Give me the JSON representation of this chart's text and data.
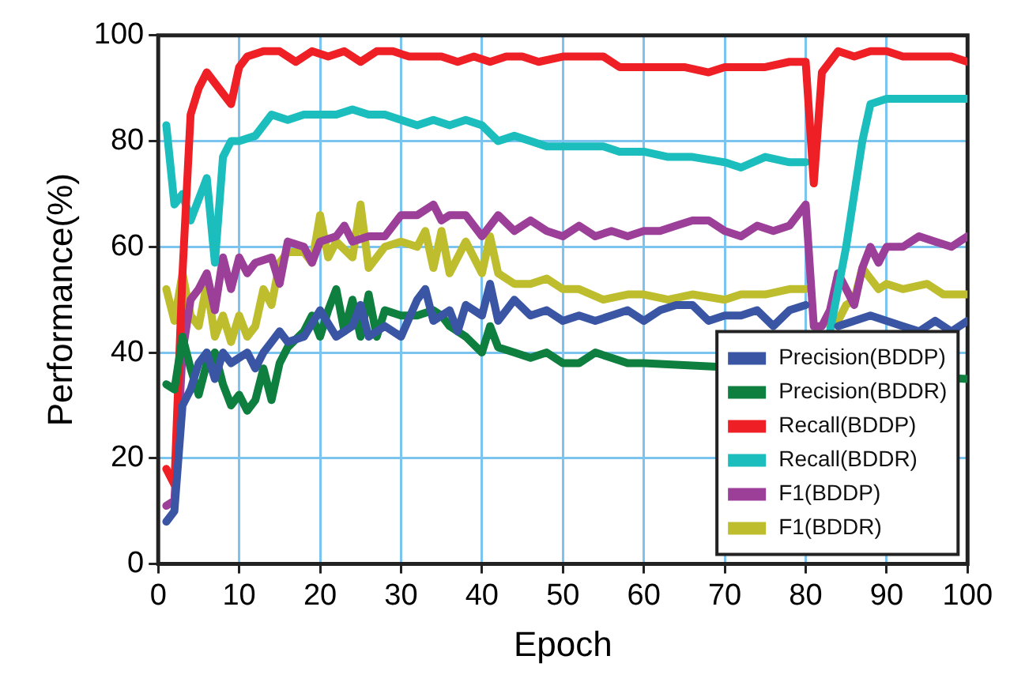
{
  "chart_data": {
    "type": "line",
    "xlabel": "Epoch",
    "ylabel": "Performance(%)",
    "xlim": [
      0,
      100
    ],
    "xticks": [
      0,
      10,
      20,
      30,
      40,
      50,
      60,
      70,
      80,
      90,
      100
    ],
    "ylim": [
      0,
      100
    ],
    "yticks": [
      0,
      20,
      40,
      60,
      80,
      100
    ],
    "grid": true,
    "legend": "bottom right",
    "marker": "none",
    "line_style": "solid",
    "series": [
      {
        "name": "Precision(BDDP)",
        "color": "#3a55a4",
        "x": [
          1,
          2,
          3,
          4,
          5,
          6,
          7,
          8,
          9,
          10,
          11,
          12,
          13,
          14,
          15,
          16,
          18,
          20,
          22,
          24,
          25,
          26,
          28,
          30,
          32,
          33,
          34,
          36,
          37,
          38,
          40,
          41,
          42,
          44,
          46,
          48,
          50,
          52,
          54,
          56,
          58,
          60,
          62,
          64,
          66,
          68,
          70,
          72,
          74,
          76,
          78,
          80,
          81,
          82,
          83,
          84,
          86,
          88,
          90,
          92,
          94,
          96,
          98,
          100
        ],
        "values": [
          8,
          10,
          30,
          33,
          38,
          40,
          35,
          40,
          38,
          39,
          40,
          37,
          40,
          42,
          44,
          42,
          43,
          48,
          43,
          45,
          49,
          43,
          45,
          43,
          50,
          52,
          46,
          48,
          44,
          49,
          47,
          53,
          46,
          50,
          47,
          48,
          46,
          47,
          46,
          47,
          48,
          46,
          48,
          49,
          49,
          46,
          47,
          47,
          48,
          45,
          48,
          49,
          null,
          null,
          null,
          45,
          46,
          47,
          46,
          45,
          44,
          46,
          44,
          46
        ]
      },
      {
        "name": "Precision(BDDR)",
        "color": "#0e7f3e",
        "x": [
          1,
          2,
          3,
          4,
          5,
          6,
          7,
          8,
          9,
          10,
          11,
          12,
          13,
          14,
          15,
          16,
          18,
          19,
          20,
          21,
          22,
          23,
          24,
          25,
          26,
          27,
          28,
          30,
          32,
          34,
          35,
          36,
          38,
          40,
          41,
          42,
          44,
          46,
          48,
          50,
          52,
          54,
          56,
          58,
          60,
          100
        ],
        "values": [
          34,
          33,
          43,
          37,
          32,
          38,
          40,
          34,
          30,
          32,
          29,
          31,
          37,
          31,
          38,
          41,
          44,
          47,
          43,
          48,
          52,
          44,
          50,
          43,
          51,
          43,
          48,
          47,
          47,
          48,
          47,
          45,
          43,
          40,
          45,
          41,
          40,
          39,
          40,
          38,
          38,
          40,
          39,
          38,
          38,
          35
        ]
      },
      {
        "name": "Recall(BDDP)",
        "color": "#ee1f25",
        "x": [
          1,
          2,
          3,
          4,
          5,
          6,
          8,
          9,
          10,
          11,
          13,
          15,
          17,
          19,
          21,
          23,
          25,
          27,
          29,
          31,
          33,
          35,
          37,
          39,
          41,
          43,
          45,
          47,
          50,
          55,
          57,
          60,
          65,
          68,
          70,
          75,
          78,
          80,
          81,
          82,
          84,
          86,
          88,
          90,
          92,
          95,
          98,
          100
        ],
        "values": [
          18,
          15,
          55,
          85,
          90,
          93,
          89,
          87,
          94,
          96,
          97,
          97,
          95,
          97,
          96,
          97,
          95,
          97,
          97,
          96,
          96,
          96,
          95,
          96,
          95,
          96,
          96,
          95,
          96,
          96,
          94,
          94,
          94,
          93,
          94,
          94,
          95,
          95,
          72,
          93,
          97,
          96,
          97,
          97,
          96,
          96,
          96,
          95
        ]
      },
      {
        "name": "Recall(BDDR)",
        "color": "#1bbdbd",
        "x": [
          1,
          2,
          3,
          4,
          6,
          7,
          8,
          9,
          10,
          12,
          14,
          16,
          18,
          20,
          22,
          24,
          26,
          28,
          30,
          32,
          34,
          36,
          38,
          40,
          42,
          44,
          46,
          48,
          50,
          52,
          55,
          57,
          60,
          63,
          66,
          70,
          72,
          75,
          78,
          80,
          81,
          82,
          83,
          85,
          86,
          87,
          88,
          90,
          95,
          100
        ],
        "values": [
          83,
          68,
          70,
          65,
          73,
          57,
          77,
          80,
          80,
          81,
          85,
          84,
          85,
          85,
          85,
          86,
          85,
          85,
          84,
          83,
          84,
          83,
          84,
          83,
          80,
          81,
          80,
          79,
          79,
          79,
          79,
          78,
          78,
          77,
          77,
          76,
          75,
          77,
          76,
          76,
          null,
          null,
          44,
          60,
          70,
          80,
          87,
          88,
          88,
          88
        ]
      },
      {
        "name": "F1(BDDP)",
        "color": "#9b3f98",
        "x": [
          1,
          2,
          3,
          4,
          5,
          6,
          7,
          8,
          9,
          10,
          11,
          12,
          14,
          15,
          16,
          18,
          19,
          20,
          22,
          23,
          24,
          26,
          28,
          30,
          32,
          34,
          35,
          36,
          38,
          40,
          42,
          44,
          46,
          48,
          50,
          52,
          54,
          56,
          58,
          60,
          62,
          64,
          66,
          68,
          70,
          72,
          74,
          76,
          78,
          79,
          80,
          81,
          82,
          83,
          84,
          85,
          86,
          87,
          88,
          89,
          90,
          92,
          94,
          96,
          98,
          100
        ],
        "values": [
          11,
          12,
          40,
          50,
          52,
          55,
          48,
          58,
          52,
          58,
          55,
          57,
          58,
          53,
          61,
          60,
          57,
          61,
          62,
          64,
          61,
          62,
          62,
          66,
          66,
          68,
          65,
          66,
          66,
          62,
          66,
          63,
          65,
          63,
          62,
          64,
          62,
          63,
          62,
          63,
          63,
          64,
          65,
          65,
          63,
          62,
          64,
          63,
          64,
          66,
          68,
          45,
          45,
          48,
          55,
          52,
          49,
          56,
          60,
          57,
          60,
          60,
          62,
          61,
          60,
          62
        ]
      },
      {
        "name": "F1(BDDR)",
        "color": "#bdbd2e",
        "x": [
          1,
          2,
          3,
          4,
          5,
          6,
          7,
          8,
          9,
          10,
          11,
          12,
          13,
          14,
          15,
          16,
          18,
          19,
          20,
          21,
          22,
          24,
          25,
          26,
          28,
          30,
          32,
          33,
          34,
          35,
          36,
          38,
          40,
          41,
          42,
          44,
          46,
          48,
          50,
          52,
          55,
          58,
          60,
          63,
          66,
          70,
          72,
          75,
          78,
          80,
          81,
          82,
          83,
          84,
          85,
          86,
          87,
          88,
          89,
          90,
          92,
          95,
          97,
          100
        ],
        "values": [
          52,
          46,
          55,
          47,
          45,
          53,
          43,
          47,
          42,
          47,
          43,
          45,
          52,
          49,
          57,
          59,
          59,
          57,
          66,
          58,
          61,
          58,
          68,
          56,
          60,
          61,
          60,
          63,
          56,
          63,
          55,
          61,
          55,
          62,
          55,
          53,
          53,
          54,
          52,
          52,
          50,
          51,
          51,
          50,
          51,
          50,
          51,
          51,
          52,
          52,
          null,
          null,
          45,
          46,
          49,
          50,
          56,
          54,
          52,
          53,
          52,
          53,
          51,
          51
        ]
      }
    ]
  }
}
